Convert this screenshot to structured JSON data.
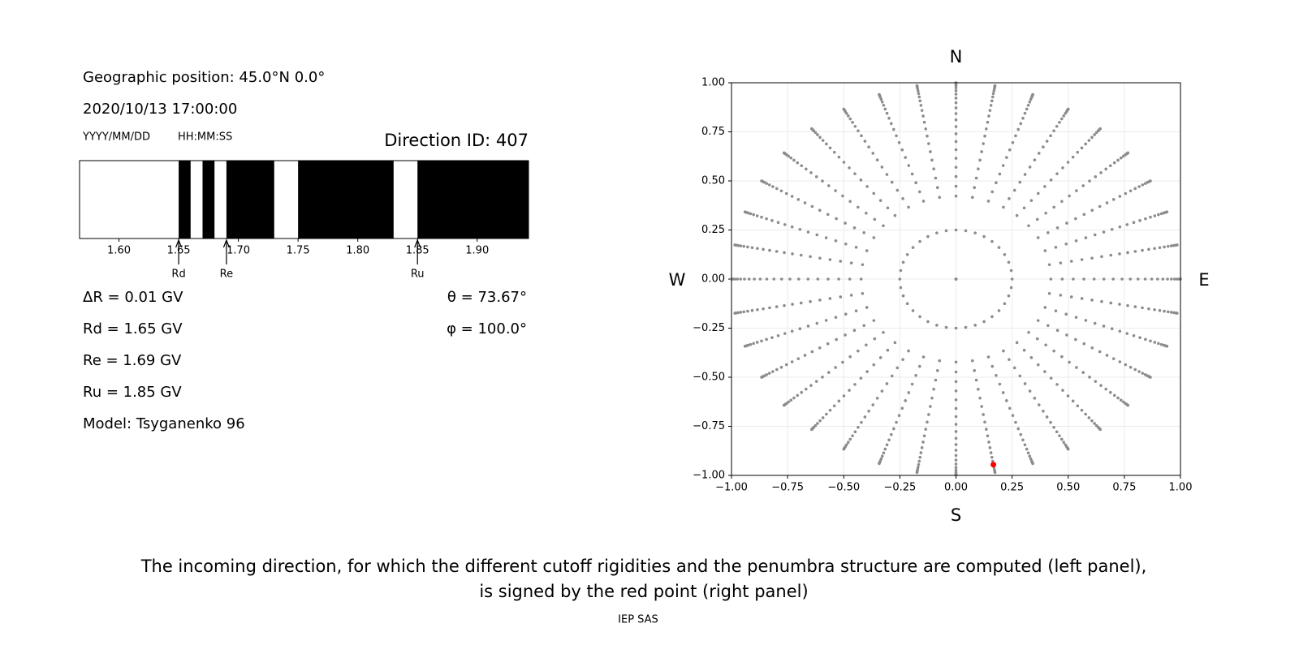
{
  "info": {
    "position": "Geographic position: 45.0°N 0.0°",
    "datetime": "2020/10/13 17:00:00",
    "date_format": "YYYY/MM/DD",
    "time_format": "HH:MM:SS",
    "direction_id": "Direction ID: 407",
    "lines": [
      "ΔR = 0.01 GV",
      "Rd = 1.65 GV",
      "Re = 1.69 GV",
      "Ru = 1.85 GV",
      "Model: Tsyganenko 96"
    ],
    "angles": [
      "θ = 73.67°",
      "φ = 100.0°"
    ],
    "caption": [
      "The incoming direction, for which the different cutoff rigidities and the penumbra structure are computed (left panel),",
      "is signed by the red point (right panel)"
    ],
    "footer": "IEP SAS"
  },
  "chart_data": [
    {
      "type": "penumbra",
      "xlim": [
        1.567,
        1.943
      ],
      "xticks": [
        {
          "value": 1.6,
          "label": "1.60"
        },
        {
          "value": 1.65,
          "label": "1.65"
        },
        {
          "value": 1.7,
          "label": "1.70"
        },
        {
          "value": 1.75,
          "label": "1.75"
        },
        {
          "value": 1.8,
          "label": "1.80"
        },
        {
          "value": 1.85,
          "label": "1.85"
        },
        {
          "value": 1.9,
          "label": "1.90"
        }
      ],
      "black_bands": [
        [
          1.65,
          1.66
        ],
        [
          1.67,
          1.68
        ],
        [
          1.69,
          1.73
        ],
        [
          1.75,
          1.83
        ],
        [
          1.85,
          1.943
        ]
      ],
      "color": "#000000",
      "markers": [
        {
          "name": "Rd",
          "value": 1.65
        },
        {
          "name": "Re",
          "value": 1.69
        },
        {
          "name": "Ru",
          "value": 1.85
        }
      ]
    },
    {
      "type": "scatter",
      "xlim": [
        -1,
        1
      ],
      "ylim": [
        -1,
        1
      ],
      "grid": true,
      "color": "#8c8c8c",
      "xticks": [
        {
          "value": -1,
          "label": "−1.00"
        },
        {
          "value": -0.75,
          "label": "−0.75"
        },
        {
          "value": -0.5,
          "label": "−0.50"
        },
        {
          "value": -0.25,
          "label": "−0.25"
        },
        {
          "value": 0,
          "label": "0.00"
        },
        {
          "value": 0.25,
          "label": "0.25"
        },
        {
          "value": 0.5,
          "label": "0.50"
        },
        {
          "value": 0.75,
          "label": "0.75"
        },
        {
          "value": 1,
          "label": "1.00"
        }
      ],
      "yticks": [
        {
          "value": -1,
          "label": "−1.00"
        },
        {
          "value": -0.75,
          "label": "−0.75"
        },
        {
          "value": -0.5,
          "label": "−0.50"
        },
        {
          "value": -0.25,
          "label": "−0.25"
        },
        {
          "value": 0,
          "label": "0.00"
        },
        {
          "value": 0.25,
          "label": "0.25"
        },
        {
          "value": 0.5,
          "label": "0.50"
        },
        {
          "value": 0.75,
          "label": "0.75"
        },
        {
          "value": 1,
          "label": "1.00"
        }
      ],
      "theta": [
        0,
        14.48,
        25,
        28.24,
        31.49,
        34.73,
        37.98,
        41.22,
        44.47,
        47.71,
        50.96,
        54.2,
        57.45,
        60.69,
        63.93,
        67.18,
        70.42,
        73.67,
        76.91,
        80.16,
        83.4,
        86.65,
        89.89
      ],
      "phi": [
        0,
        10,
        20,
        30,
        40,
        50,
        60,
        70,
        80,
        90,
        100,
        110,
        120,
        130,
        140,
        150,
        160,
        170,
        180,
        190,
        200,
        210,
        220,
        230,
        240,
        250,
        260,
        270,
        280,
        290,
        300,
        310,
        320,
        330,
        340,
        350
      ],
      "highlight": {
        "theta": 73.67,
        "phi": 100.0,
        "color": "#ff0000"
      },
      "labels": {
        "top": "N",
        "bottom": "S",
        "left": "W",
        "right": "E"
      }
    }
  ]
}
